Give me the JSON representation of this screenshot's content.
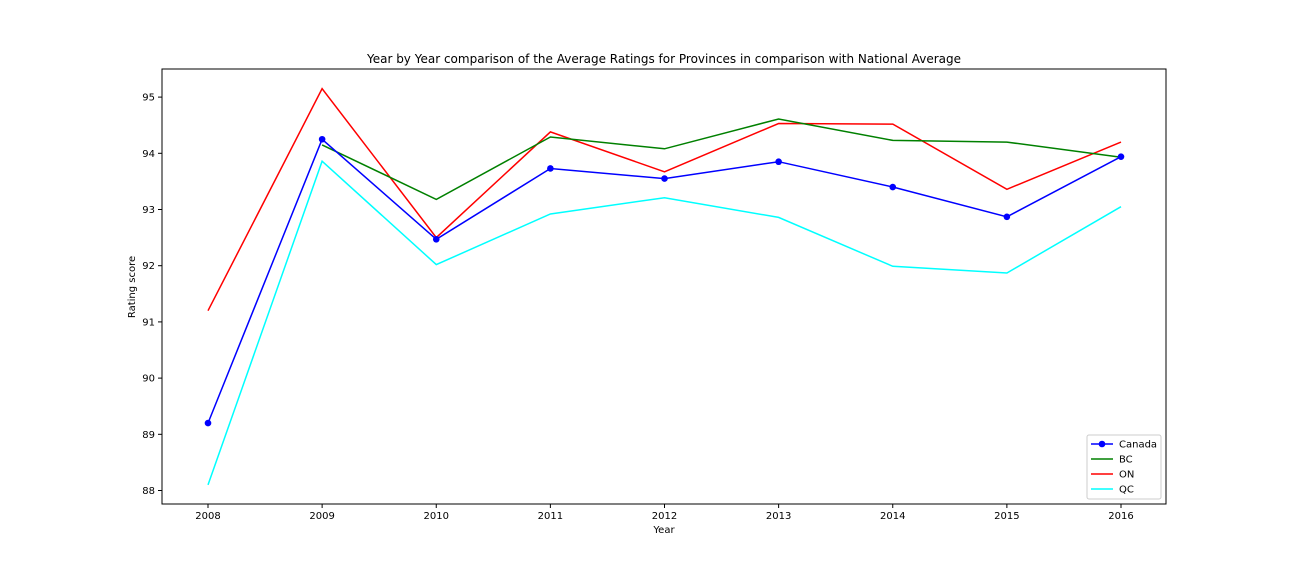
{
  "chart_data": {
    "type": "line",
    "title": "Year by Year comparison of the Average Ratings for Provinces in comparison with National Average",
    "xlabel": "Year",
    "ylabel": "Rating score",
    "x": [
      "2008",
      "2009",
      "2010",
      "2011",
      "2012",
      "2013",
      "2014",
      "2015",
      "2016"
    ],
    "yticks": [
      "88",
      "89",
      "90",
      "91",
      "92",
      "93",
      "94",
      "95"
    ],
    "ylim": [
      87.76,
      95.5
    ],
    "grid": false,
    "legend_position": "lower-right",
    "series": [
      {
        "name": "Canada",
        "color": "#0000ff",
        "marker": "circle",
        "values": [
          89.2,
          94.25,
          92.47,
          93.73,
          93.55,
          93.85,
          93.4,
          92.87,
          93.94
        ]
      },
      {
        "name": "BC",
        "color": "#008000",
        "marker": "none",
        "values": [
          null,
          94.15,
          93.18,
          94.29,
          94.08,
          94.61,
          94.23,
          94.2,
          93.93
        ]
      },
      {
        "name": "ON",
        "color": "#ff0000",
        "marker": "none",
        "values": [
          91.2,
          95.15,
          92.5,
          94.38,
          93.67,
          94.53,
          94.52,
          93.36,
          94.2
        ]
      },
      {
        "name": "QC",
        "color": "#00ffff",
        "marker": "none",
        "values": [
          88.1,
          93.86,
          92.02,
          92.92,
          93.21,
          92.86,
          91.99,
          91.87,
          93.05
        ]
      }
    ]
  }
}
